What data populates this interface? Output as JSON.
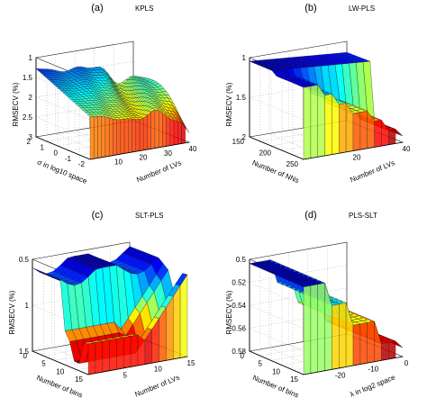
{
  "chart_data": [
    {
      "type": "surface",
      "panel_letter": "(a)",
      "title": "KPLS",
      "zlabel": "RMSECV (%)",
      "xlabel": "Number of LVs",
      "ylabel": "σ in log10 space",
      "z_ticks": [
        "1",
        "1.5",
        "2",
        "2.5",
        "3"
      ],
      "z_reversed": true,
      "x_ticks": [
        "10",
        "20",
        "30",
        "40"
      ],
      "y_ticks": [
        "2",
        "1",
        "0",
        "-1",
        "-2"
      ],
      "x": [
        1,
        40
      ],
      "y": [
        -2,
        2
      ],
      "zlim": [
        1,
        3
      ],
      "colormap": "jet",
      "description": "jagged surface",
      "grid": true
    },
    {
      "type": "surface",
      "panel_letter": "(b)",
      "title": "LW-PLS",
      "zlabel": "RMSECV (%)",
      "xlabel": "Number of LVs",
      "ylabel": "Number of NNs",
      "z_ticks": [
        "1",
        "1.5",
        "2"
      ],
      "z_reversed": true,
      "x_ticks": [
        "20",
        "40"
      ],
      "y_ticks": [
        "150",
        "200",
        "250"
      ],
      "x": [
        1,
        40
      ],
      "y": [
        150,
        250
      ],
      "zlim": [
        1,
        2
      ],
      "colormap": "jet",
      "grid": true
    },
    {
      "type": "surface",
      "panel_letter": "(c)",
      "title": "SLT-PLS",
      "zlabel": "RMSECV (%)",
      "xlabel": "Number of LVs",
      "ylabel": "Number of bins",
      "z_ticks": [
        "0.5",
        "1",
        "1.5"
      ],
      "z_reversed": true,
      "x_ticks": [
        "5",
        "10",
        "15"
      ],
      "y_ticks": [
        "0",
        "5",
        "10",
        "15"
      ],
      "x": [
        1,
        15
      ],
      "y": [
        0,
        15
      ],
      "zlim": [
        0.5,
        1.5
      ],
      "colormap": "jet",
      "grid": true
    },
    {
      "type": "surface",
      "panel_letter": "(d)",
      "title": "PLS-SLT",
      "zlabel": "RMSECV (%)",
      "xlabel": "λ in log2 space",
      "ylabel": "Number of bins",
      "z_ticks": [
        "0.5",
        "0.52",
        "0.54",
        "0.56",
        "0.58"
      ],
      "z_reversed": true,
      "x_ticks": [
        "-20",
        "-10",
        "0"
      ],
      "y_ticks": [
        "0",
        "5",
        "10",
        "15"
      ],
      "x": [
        -20,
        0
      ],
      "y": [
        0,
        15
      ],
      "zlim": [
        0.5,
        0.58
      ],
      "colormap": "jet",
      "grid": true
    }
  ]
}
